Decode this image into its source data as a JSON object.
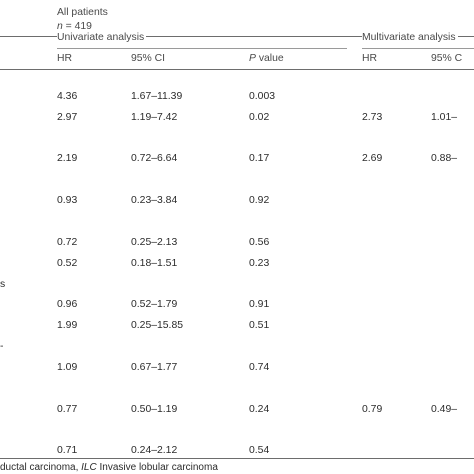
{
  "header": {
    "group_title": "All patients",
    "n_label": "n",
    "n_value": "= 419",
    "univariate": "Univariate analysis",
    "multivariate": "Multivariate analysis",
    "hr": "HR",
    "ci": "95% CI",
    "p_italic": "P",
    "p_rest": " value",
    "hr2": "HR",
    "ci2_partial": "95% C"
  },
  "rows": [
    {
      "hr": "4.36",
      "ci": "1.67–11.39",
      "p": "0.003",
      "mhr": "",
      "mci": ""
    },
    {
      "hr": "2.97",
      "ci": "1.19–7.42",
      "p": "0.02",
      "mhr": "2.73",
      "mci": "1.01–"
    },
    {
      "hr": "2.19",
      "ci": "0.72–6.64",
      "p": "0.17",
      "mhr": "2.69",
      "mci": "0.88–"
    },
    {
      "hr": "0.93",
      "ci": "0.23–3.84",
      "p": "0.92",
      "mhr": "",
      "mci": ""
    },
    {
      "hr": "0.72",
      "ci": "0.25–2.13",
      "p": "0.56",
      "mhr": "",
      "mci": ""
    },
    {
      "hr": "0.52",
      "ci": "0.18–1.51",
      "p": "0.23",
      "mhr": "",
      "mci": ""
    },
    {
      "hr": "0.96",
      "ci": "0.52–1.79",
      "p": "0.91",
      "mhr": "",
      "mci": ""
    },
    {
      "hr": "1.99",
      "ci": "0.25–15.85",
      "p": "0.51",
      "mhr": "",
      "mci": ""
    },
    {
      "hr": "1.09",
      "ci": "0.67–1.77",
      "p": "0.74",
      "mhr": "",
      "mci": ""
    },
    {
      "hr": "0.77",
      "ci": "0.50–1.19",
      "p": "0.24",
      "mhr": "0.79",
      "mci": "0.49–"
    },
    {
      "hr": "0.71",
      "ci": "0.24–2.12",
      "p": "0.54",
      "mhr": "",
      "mci": ""
    }
  ],
  "left_fragments": {
    "s": "s",
    "dash": "-"
  },
  "footnote": {
    "prefix": "ductal carcinoma, ",
    "ilc_abbr": "ILC",
    "ilc_text": " Invasive lobular carcinoma"
  }
}
